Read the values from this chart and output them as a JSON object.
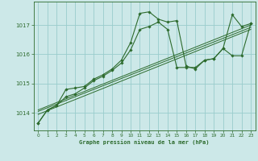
{
  "title": "Graphe pression niveau de la mer (hPa)",
  "bg_color": "#cce8e8",
  "grid_color": "#99cccc",
  "line_color": "#2d6b2d",
  "xlim": [
    -0.5,
    23.5
  ],
  "ylim": [
    1013.4,
    1017.8
  ],
  "yticks": [
    1014,
    1015,
    1016,
    1017
  ],
  "xticks": [
    0,
    1,
    2,
    3,
    4,
    5,
    6,
    7,
    8,
    9,
    10,
    11,
    12,
    13,
    14,
    15,
    16,
    17,
    18,
    19,
    20,
    21,
    22,
    23
  ],
  "series1_x": [
    0,
    1,
    2,
    3,
    4,
    5,
    6,
    7,
    8,
    9,
    10,
    11,
    12,
    13,
    14,
    15,
    16,
    17,
    18,
    19,
    20,
    21,
    22,
    23
  ],
  "series1_y": [
    1013.65,
    1014.1,
    1014.25,
    1014.8,
    1014.85,
    1014.9,
    1015.15,
    1015.3,
    1015.5,
    1015.8,
    1016.4,
    1017.4,
    1017.45,
    1017.2,
    1017.1,
    1017.15,
    1015.6,
    1015.5,
    1015.8,
    1015.85,
    1016.2,
    1017.35,
    1016.95,
    1017.05
  ],
  "series2_x": [
    0,
    1,
    2,
    3,
    4,
    5,
    6,
    7,
    8,
    9,
    10,
    11,
    12,
    13,
    14,
    15,
    16,
    17,
    18,
    19,
    20,
    21,
    22,
    23
  ],
  "series2_y": [
    1013.65,
    1014.1,
    1014.25,
    1014.55,
    1014.65,
    1014.85,
    1015.1,
    1015.25,
    1015.45,
    1015.7,
    1016.15,
    1016.85,
    1016.95,
    1017.1,
    1016.85,
    1015.55,
    1015.55,
    1015.55,
    1015.8,
    1015.85,
    1016.2,
    1015.95,
    1015.95,
    1017.05
  ],
  "trend1_x": [
    0,
    23
  ],
  "trend1_y": [
    1014.05,
    1016.92
  ],
  "trend2_x": [
    0,
    23
  ],
  "trend2_y": [
    1014.1,
    1017.0
  ],
  "trend3_x": [
    0,
    23
  ],
  "trend3_y": [
    1013.95,
    1016.85
  ]
}
